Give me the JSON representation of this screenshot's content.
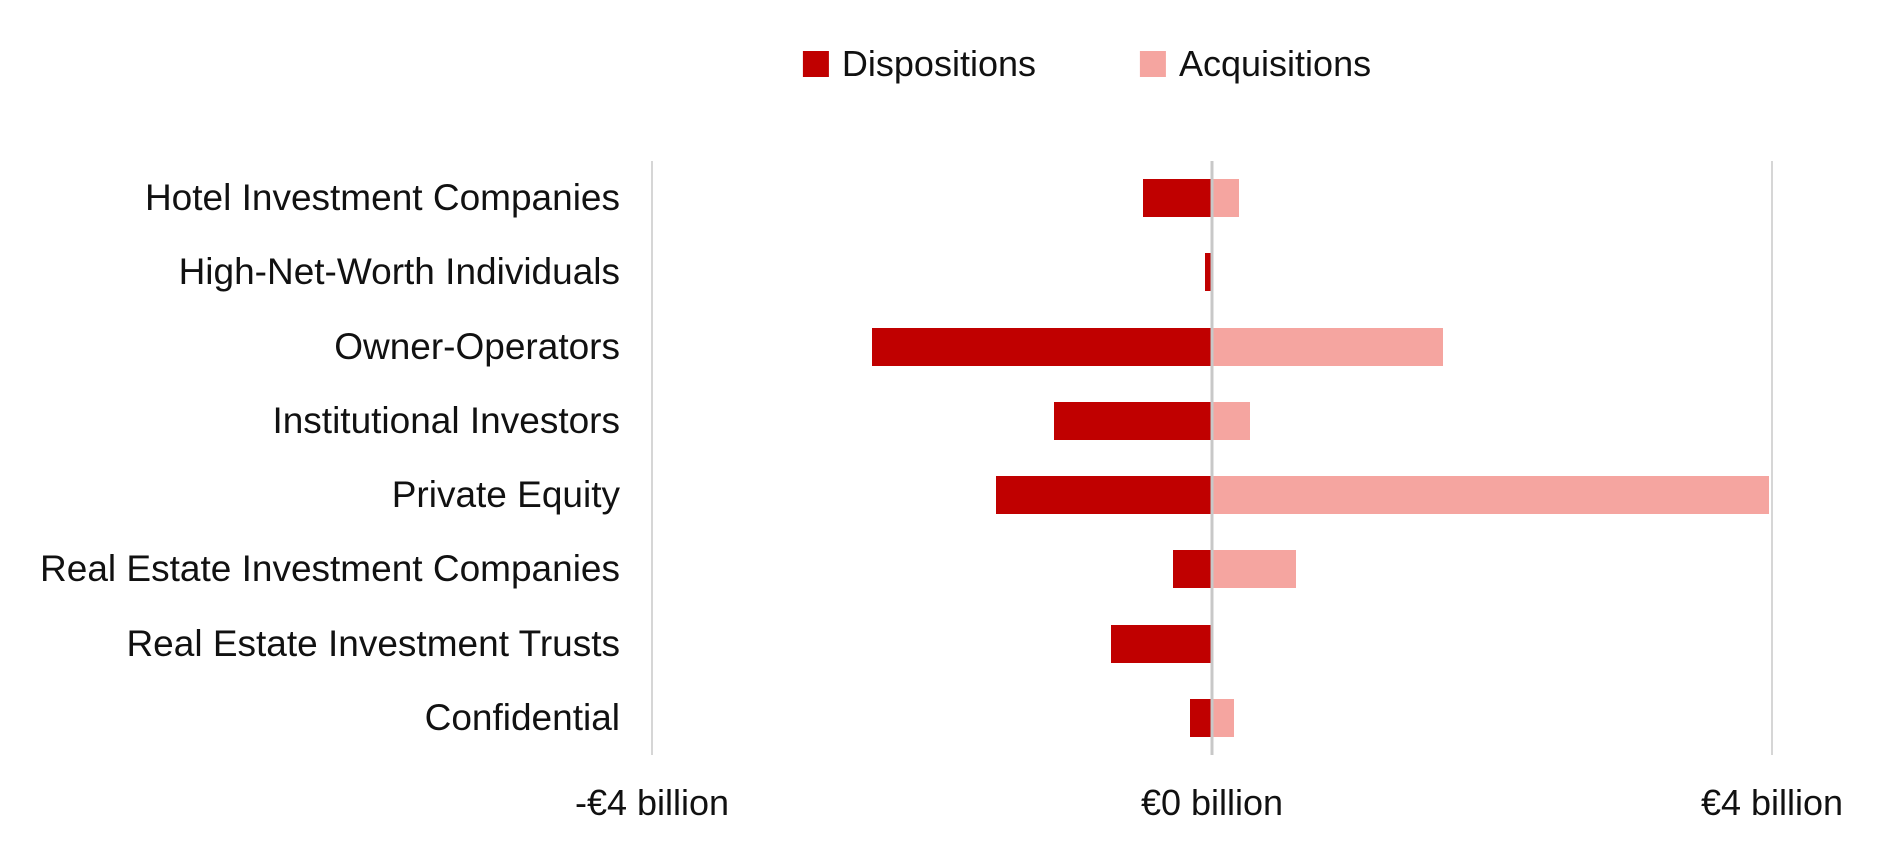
{
  "colors": {
    "dispositions": "#C00000",
    "acquisitions": "#F5A5A0",
    "gridline": "#D6D6D6",
    "zero_line": "#C8C8C8",
    "text": "#111111",
    "background": "#FFFFFF"
  },
  "legend": {
    "items": [
      {
        "label": "Dispositions",
        "color": "#C00000"
      },
      {
        "label": "Acquisitions",
        "color": "#F5A5A0"
      }
    ]
  },
  "chart_data": {
    "type": "bar",
    "orientation": "horizontal-diverging",
    "title": "",
    "unit": "€ billion",
    "categories": [
      "Hotel Investment Companies",
      "High-Net-Worth Individuals",
      "Owner-Operators",
      "Institutional Investors",
      "Private Equity",
      "Real Estate Investment Companies",
      "Real Estate Investment Trusts",
      "Confidential"
    ],
    "series": [
      {
        "name": "Dispositions",
        "color": "#C00000",
        "values": [
          -0.49,
          -0.05,
          -2.43,
          -1.13,
          -1.54,
          -0.28,
          -0.72,
          -0.16
        ]
      },
      {
        "name": "Acquisitions",
        "color": "#F5A5A0",
        "values": [
          0.19,
          0.0,
          1.65,
          0.27,
          3.98,
          0.6,
          0.0,
          0.16
        ]
      }
    ],
    "xlim": [
      -4,
      4
    ],
    "x_ticks": [
      {
        "value": -4,
        "label": "-€4 billion"
      },
      {
        "value": 0,
        "label": "€0 billion"
      },
      {
        "value": 4,
        "label": "€4 billion"
      }
    ],
    "grid": "vertical lines at -4, 0, +4",
    "legend_position": "top-center"
  }
}
